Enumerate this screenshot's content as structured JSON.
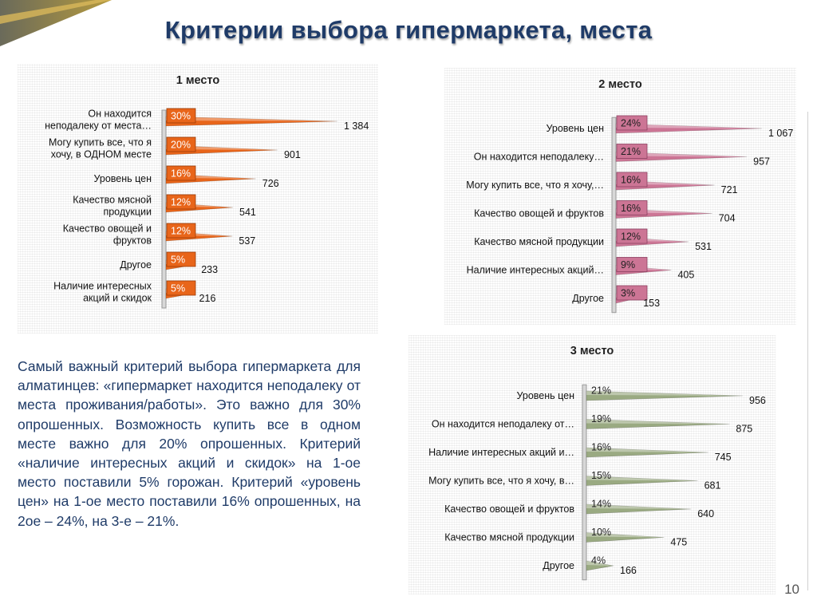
{
  "title": "Критерии выбора гипермаркета, места",
  "note": "Самый важный критерий выбора гипермаркета для алматинцев: «гипермаркет находится неподалеку от места проживания/работы». Это важно для 30% опрошенных. Возможность купить все в одном месте важно для 20% опрошенных. Критерий «наличие интересных акций и скидок» на 1-ое место поставили 5% горожан. Критерий «уровень цен» на 1-ое место поставили 16% опрошенных, на 2ое – 24%, на 3-е – 21%.",
  "page_number": "10",
  "colors": {
    "title": "#1f3b68",
    "chart1": "#e8651a",
    "chart2": "#cc7595",
    "chart3": "#9aaa82"
  },
  "chart_data": [
    {
      "type": "bar",
      "title": "1 место",
      "categories": [
        [
          "Он находится",
          "неподалеку от места…"
        ],
        [
          "Могу купить все, что я",
          "хочу, в ОДНОМ месте"
        ],
        [
          "Уровень цен"
        ],
        [
          "Качество мясной",
          "продукции"
        ],
        [
          "Качество овощей и",
          "фруктов"
        ],
        [
          "Другое"
        ],
        [
          "Наличие интересных",
          "акций и скидок"
        ]
      ],
      "values": [
        1384,
        901,
        726,
        541,
        537,
        233,
        216
      ],
      "value_labels": [
        "1 384",
        "901",
        "726",
        "541",
        "537",
        "233",
        "216"
      ],
      "percents": [
        "30%",
        "20%",
        "16%",
        "12%",
        "12%",
        "5%",
        "5%"
      ]
    },
    {
      "type": "bar",
      "title": "2 место",
      "categories": [
        [
          "Уровень цен"
        ],
        [
          "Он находится неподалеку…"
        ],
        [
          "Могу купить все, что я хочу,…"
        ],
        [
          "Качество овощей и фруктов"
        ],
        [
          "Качество мясной продукции"
        ],
        [
          "Наличие интересных акций…"
        ],
        [
          "Другое"
        ]
      ],
      "values": [
        1067,
        957,
        721,
        704,
        531,
        405,
        153
      ],
      "value_labels": [
        "1 067",
        "957",
        "721",
        "704",
        "531",
        "405",
        "153"
      ],
      "percents": [
        "24%",
        "21%",
        "16%",
        "16%",
        "12%",
        "9%",
        "3%"
      ]
    },
    {
      "type": "bar",
      "title": "3 место",
      "categories": [
        [
          "Уровень цен"
        ],
        [
          "Он находится неподалеку от…"
        ],
        [
          "Наличие интересных акций и…"
        ],
        [
          "Могу купить все, что я хочу, в…"
        ],
        [
          "Качество овощей и фруктов"
        ],
        [
          "Качество мясной продукции"
        ],
        [
          "Другое"
        ]
      ],
      "values": [
        956,
        875,
        745,
        681,
        640,
        475,
        166
      ],
      "value_labels": [
        "956",
        "875",
        "745",
        "681",
        "640",
        "475",
        "166"
      ],
      "percents": [
        "21%",
        "19%",
        "16%",
        "15%",
        "14%",
        "10%",
        "4%"
      ]
    }
  ]
}
